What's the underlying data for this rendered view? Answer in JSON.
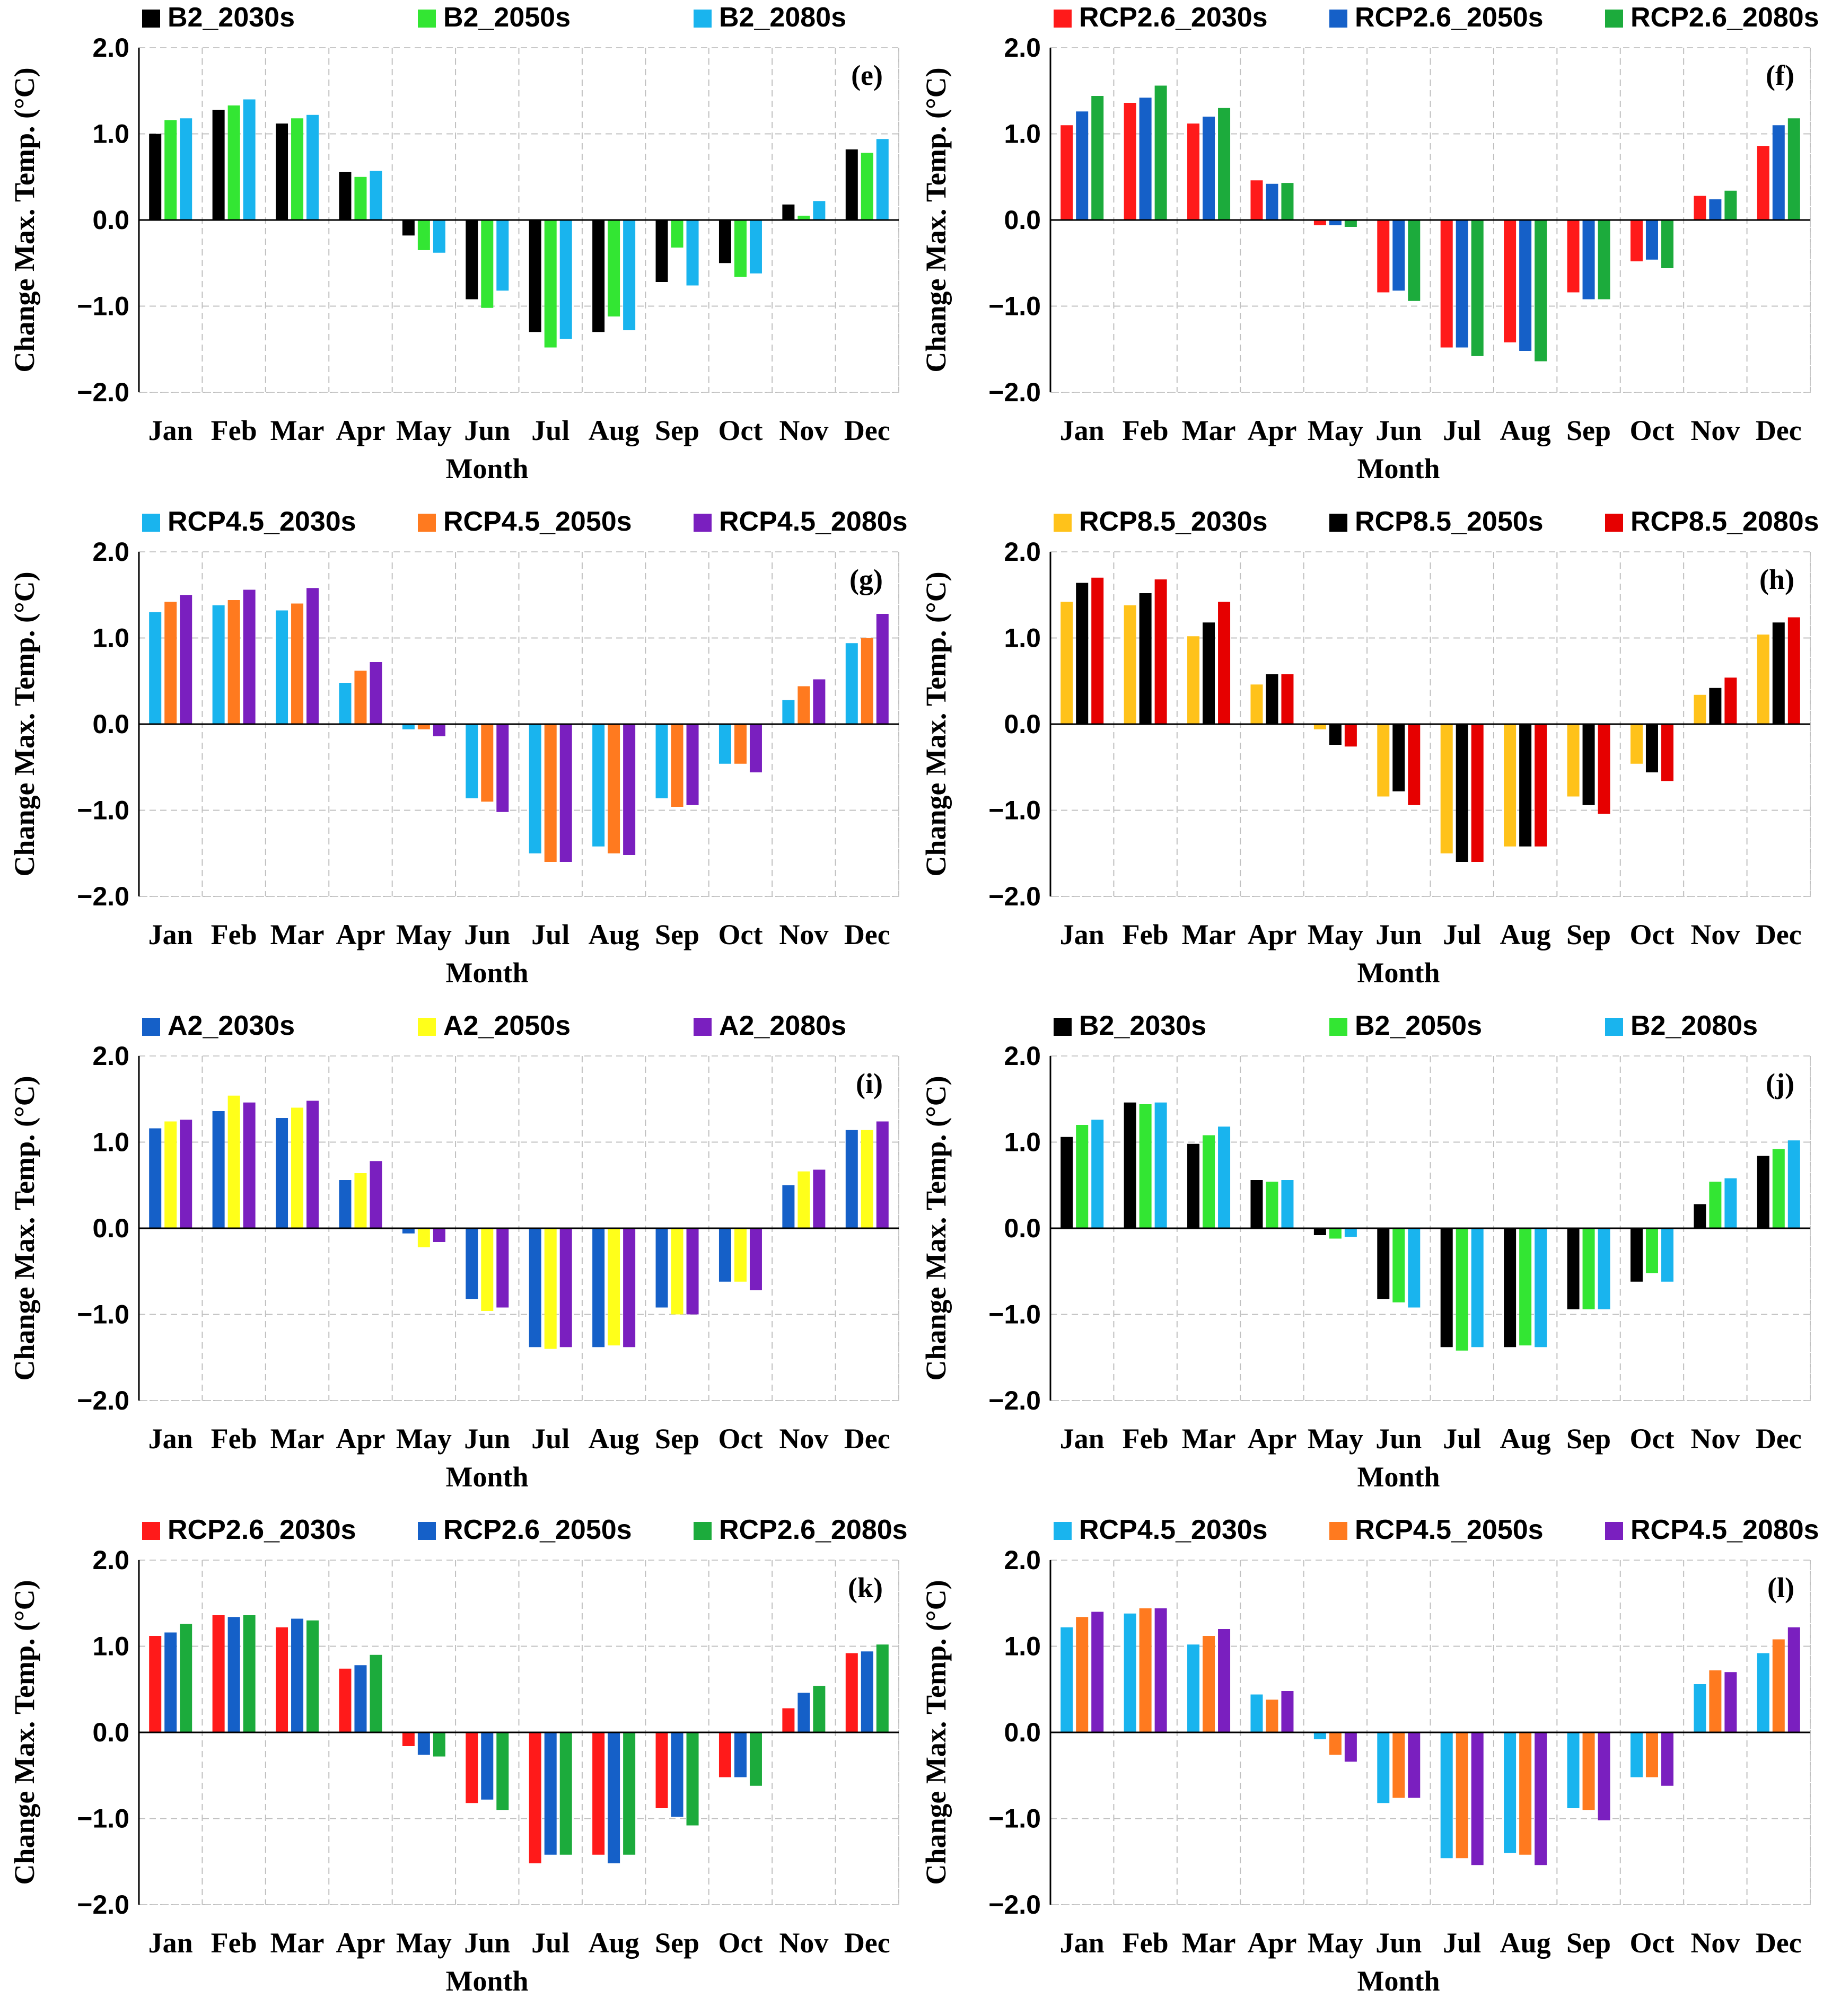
{
  "chart_data": [
    {
      "type": "bar",
      "panel": "(e)",
      "categories": [
        "Jan",
        "Feb",
        "Mar",
        "Apr",
        "May",
        "Jun",
        "Jul",
        "Aug",
        "Sep",
        "Oct",
        "Nov",
        "Dec"
      ],
      "xlabel": "Month",
      "ylabel": "Change Max. Temp. (°C)",
      "ylim": [
        -2.0,
        2.0
      ],
      "yticks": [
        "2.0",
        "1.0",
        "0.0",
        "−1.0",
        "−2.0"
      ],
      "legend_position": "top",
      "series": [
        {
          "name": "B2_2030s",
          "color": "#000000",
          "values": [
            1.0,
            1.28,
            1.12,
            0.56,
            -0.18,
            -0.92,
            -1.3,
            -1.3,
            -0.72,
            -0.5,
            0.18,
            0.82
          ]
        },
        {
          "name": "B2_2050s",
          "color": "#33e633",
          "values": [
            1.16,
            1.33,
            1.18,
            0.5,
            -0.35,
            -1.02,
            -1.48,
            -1.12,
            -0.32,
            -0.66,
            0.05,
            0.78
          ]
        },
        {
          "name": "B2_2080s",
          "color": "#19b4ee",
          "values": [
            1.18,
            1.4,
            1.22,
            0.57,
            -0.38,
            -0.82,
            -1.38,
            -1.28,
            -0.76,
            -0.62,
            0.22,
            0.94
          ]
        }
      ]
    },
    {
      "type": "bar",
      "panel": "(f)",
      "categories": [
        "Jan",
        "Feb",
        "Mar",
        "Apr",
        "May",
        "Jun",
        "Jul",
        "Aug",
        "Sep",
        "Oct",
        "Nov",
        "Dec"
      ],
      "xlabel": "Month",
      "ylabel": "Change Max. Temp. (°C)",
      "ylim": [
        -2.0,
        2.0
      ],
      "yticks": [
        "2.0",
        "1.0",
        "0.0",
        "−1.0",
        "−2.0"
      ],
      "legend_position": "top",
      "series": [
        {
          "name": "RCP2.6_2030s",
          "color": "#ff1a1a",
          "values": [
            1.1,
            1.36,
            1.12,
            0.46,
            -0.06,
            -0.84,
            -1.48,
            -1.42,
            -0.84,
            -0.48,
            0.28,
            0.86
          ]
        },
        {
          "name": "RCP2.6_2050s",
          "color": "#1560c8",
          "values": [
            1.26,
            1.42,
            1.2,
            0.42,
            -0.06,
            -0.82,
            -1.48,
            -1.52,
            -0.92,
            -0.46,
            0.24,
            1.1
          ]
        },
        {
          "name": "RCP2.6_2080s",
          "color": "#1cab3c",
          "values": [
            1.44,
            1.56,
            1.3,
            0.43,
            -0.08,
            -0.94,
            -1.58,
            -1.64,
            -0.92,
            -0.56,
            0.34,
            1.18
          ]
        }
      ]
    },
    {
      "type": "bar",
      "panel": "(g)",
      "categories": [
        "Jan",
        "Feb",
        "Mar",
        "Apr",
        "May",
        "Jun",
        "Jul",
        "Aug",
        "Sep",
        "Oct",
        "Nov",
        "Dec"
      ],
      "xlabel": "Month",
      "ylabel": "Change Max. Temp. (°C)",
      "ylim": [
        -2.0,
        2.0
      ],
      "yticks": [
        "2.0",
        "1.0",
        "0.0",
        "−1.0",
        "−2.0"
      ],
      "legend_position": "top",
      "series": [
        {
          "name": "RCP4.5_2030s",
          "color": "#19b4ee",
          "values": [
            1.3,
            1.38,
            1.32,
            0.48,
            -0.06,
            -0.86,
            -1.5,
            -1.42,
            -0.86,
            -0.46,
            0.28,
            0.94
          ]
        },
        {
          "name": "RCP4.5_2050s",
          "color": "#ff7a1f",
          "values": [
            1.42,
            1.44,
            1.4,
            0.62,
            -0.06,
            -0.9,
            -1.6,
            -1.5,
            -0.96,
            -0.46,
            0.44,
            1.0
          ]
        },
        {
          "name": "RCP4.5_2080s",
          "color": "#7a1fbf",
          "values": [
            1.5,
            1.56,
            1.58,
            0.72,
            -0.14,
            -1.02,
            -1.6,
            -1.52,
            -0.94,
            -0.56,
            0.52,
            1.28
          ]
        }
      ]
    },
    {
      "type": "bar",
      "panel": "(h)",
      "categories": [
        "Jan",
        "Feb",
        "Mar",
        "Apr",
        "May",
        "Jun",
        "Jul",
        "Aug",
        "Sep",
        "Oct",
        "Nov",
        "Dec"
      ],
      "xlabel": "Month",
      "ylabel": "Change Max. Temp. (°C)",
      "ylim": [
        -2.0,
        2.0
      ],
      "yticks": [
        "2.0",
        "1.0",
        "0.0",
        "−1.0",
        "−2.0"
      ],
      "legend_position": "top",
      "series": [
        {
          "name": "RCP8.5_2030s",
          "color": "#ffc21a",
          "values": [
            1.42,
            1.38,
            1.02,
            0.46,
            -0.06,
            -0.84,
            -1.5,
            -1.42,
            -0.84,
            -0.46,
            0.34,
            1.04
          ]
        },
        {
          "name": "RCP8.5_2050s",
          "color": "#000000",
          "values": [
            1.64,
            1.52,
            1.18,
            0.58,
            -0.24,
            -0.78,
            -1.6,
            -1.42,
            -0.94,
            -0.56,
            0.42,
            1.18
          ]
        },
        {
          "name": "RCP8.5_2080s",
          "color": "#e60000",
          "values": [
            1.7,
            1.68,
            1.42,
            0.58,
            -0.26,
            -0.94,
            -1.6,
            -1.42,
            -1.04,
            -0.66,
            0.54,
            1.24
          ]
        }
      ]
    },
    {
      "type": "bar",
      "panel": "(i)",
      "categories": [
        "Jan",
        "Feb",
        "Mar",
        "Apr",
        "May",
        "Jun",
        "Jul",
        "Aug",
        "Sep",
        "Oct",
        "Nov",
        "Dec"
      ],
      "xlabel": "Month",
      "ylabel": "Change Max. Temp. (°C)",
      "ylim": [
        -2.0,
        2.0
      ],
      "yticks": [
        "2.0",
        "1.0",
        "0.0",
        "−1.0",
        "−2.0"
      ],
      "legend_position": "top",
      "series": [
        {
          "name": "A2_2030s",
          "color": "#1560c8",
          "values": [
            1.16,
            1.36,
            1.28,
            0.56,
            -0.06,
            -0.82,
            -1.38,
            -1.38,
            -0.92,
            -0.62,
            0.5,
            1.14
          ]
        },
        {
          "name": "A2_2050s",
          "color": "#ffff1a",
          "values": [
            1.24,
            1.54,
            1.4,
            0.64,
            -0.22,
            -0.96,
            -1.4,
            -1.36,
            -1.0,
            -0.62,
            0.66,
            1.14
          ]
        },
        {
          "name": "A2_2080s",
          "color": "#7a1fbf",
          "values": [
            1.26,
            1.46,
            1.48,
            0.78,
            -0.16,
            -0.92,
            -1.38,
            -1.38,
            -1.0,
            -0.72,
            0.68,
            1.24
          ]
        }
      ]
    },
    {
      "type": "bar",
      "panel": "(j)",
      "categories": [
        "Jan",
        "Feb",
        "Mar",
        "Apr",
        "May",
        "Jun",
        "Jul",
        "Aug",
        "Sep",
        "Oct",
        "Nov",
        "Dec"
      ],
      "xlabel": "Month",
      "ylabel": "Change Max. Temp. (°C)",
      "ylim": [
        -2.0,
        2.0
      ],
      "yticks": [
        "2.0",
        "1.0",
        "0.0",
        "−1.0",
        "−2.0"
      ],
      "legend_position": "top",
      "series": [
        {
          "name": "B2_2030s",
          "color": "#000000",
          "values": [
            1.06,
            1.46,
            0.98,
            0.56,
            -0.08,
            -0.82,
            -1.38,
            -1.38,
            -0.94,
            -0.62,
            0.28,
            0.84
          ]
        },
        {
          "name": "B2_2050s",
          "color": "#33e633",
          "values": [
            1.2,
            1.44,
            1.08,
            0.54,
            -0.12,
            -0.86,
            -1.42,
            -1.36,
            -0.94,
            -0.52,
            0.54,
            0.92
          ]
        },
        {
          "name": "B2_2080s",
          "color": "#19b4ee",
          "values": [
            1.26,
            1.46,
            1.18,
            0.56,
            -0.1,
            -0.92,
            -1.38,
            -1.38,
            -0.94,
            -0.62,
            0.58,
            1.02
          ]
        }
      ]
    },
    {
      "type": "bar",
      "panel": "(k)",
      "categories": [
        "Jan",
        "Feb",
        "Mar",
        "Apr",
        "May",
        "Jun",
        "Jul",
        "Aug",
        "Sep",
        "Oct",
        "Nov",
        "Dec"
      ],
      "xlabel": "Month",
      "ylabel": "Change Max. Temp. (°C)",
      "ylim": [
        -2.0,
        2.0
      ],
      "yticks": [
        "2.0",
        "1.0",
        "0.0",
        "−1.0",
        "−2.0"
      ],
      "legend_position": "top",
      "series": [
        {
          "name": "RCP2.6_2030s",
          "color": "#ff1a1a",
          "values": [
            1.12,
            1.36,
            1.22,
            0.74,
            -0.16,
            -0.82,
            -1.52,
            -1.42,
            -0.88,
            -0.52,
            0.28,
            0.92
          ]
        },
        {
          "name": "RCP2.6_2050s",
          "color": "#1560c8",
          "values": [
            1.16,
            1.34,
            1.32,
            0.78,
            -0.26,
            -0.78,
            -1.42,
            -1.52,
            -0.98,
            -0.52,
            0.46,
            0.94
          ]
        },
        {
          "name": "RCP2.6_2080s",
          "color": "#1cab3c",
          "values": [
            1.26,
            1.36,
            1.3,
            0.9,
            -0.28,
            -0.9,
            -1.42,
            -1.42,
            -1.08,
            -0.62,
            0.54,
            1.02
          ]
        }
      ]
    },
    {
      "type": "bar",
      "panel": "(l)",
      "categories": [
        "Jan",
        "Feb",
        "Mar",
        "Apr",
        "May",
        "Jun",
        "Jul",
        "Aug",
        "Sep",
        "Oct",
        "Nov",
        "Dec"
      ],
      "xlabel": "Month",
      "ylabel": "Change Max. Temp. (°C)",
      "ylim": [
        -2.0,
        2.0
      ],
      "yticks": [
        "2.0",
        "1.0",
        "0.0",
        "−1.0",
        "−2.0"
      ],
      "legend_position": "top",
      "series": [
        {
          "name": "RCP4.5_2030s",
          "color": "#19b4ee",
          "values": [
            1.22,
            1.38,
            1.02,
            0.44,
            -0.08,
            -0.82,
            -1.46,
            -1.4,
            -0.88,
            -0.52,
            0.56,
            0.92
          ]
        },
        {
          "name": "RCP4.5_2050s",
          "color": "#ff7a1f",
          "values": [
            1.34,
            1.44,
            1.12,
            0.38,
            -0.26,
            -0.76,
            -1.46,
            -1.42,
            -0.9,
            -0.52,
            0.72,
            1.08
          ]
        },
        {
          "name": "RCP4.5_2080s",
          "color": "#7a1fbf",
          "values": [
            1.4,
            1.44,
            1.2,
            0.48,
            -0.34,
            -0.76,
            -1.54,
            -1.54,
            -1.02,
            -0.62,
            0.7,
            1.22
          ]
        }
      ]
    }
  ]
}
